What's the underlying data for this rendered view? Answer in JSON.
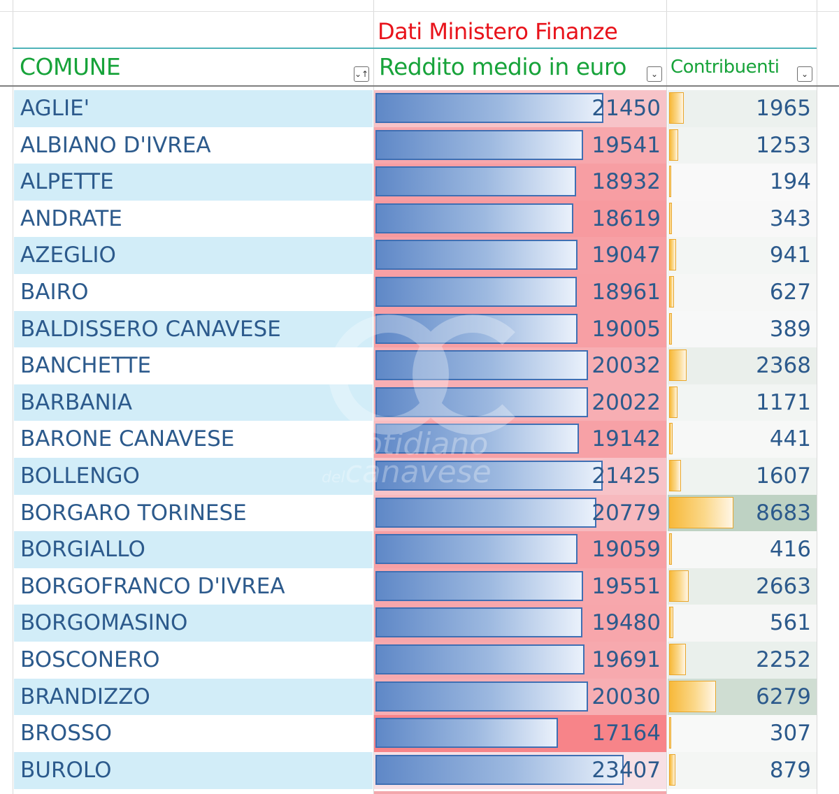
{
  "header": {
    "super_title": "Dati Ministero Finanze",
    "col_comune": "COMUNE",
    "col_reddito": "Reddito medio in euro",
    "col_contribuenti": "Contribuenti",
    "sort_icon_glyph": "⌄↑",
    "filter_icon_glyph": "⌄"
  },
  "colors": {
    "header_green": "#17a33a",
    "super_red": "#e8131b",
    "row_blue": "#d2edf8",
    "text_blue": "#2c5a8c"
  },
  "rows": [
    {
      "comune": "AGLIE'",
      "reddito": "21450",
      "contribuenti": "1965"
    },
    {
      "comune": "ALBIANO D'IVREA",
      "reddito": "19541",
      "contribuenti": "1253"
    },
    {
      "comune": "ALPETTE",
      "reddito": "18932",
      "contribuenti": "194"
    },
    {
      "comune": "ANDRATE",
      "reddito": "18619",
      "contribuenti": "343"
    },
    {
      "comune": "AZEGLIO",
      "reddito": "19047",
      "contribuenti": "941"
    },
    {
      "comune": "BAIRO",
      "reddito": "18961",
      "contribuenti": "627"
    },
    {
      "comune": "BALDISSERO CANAVESE",
      "reddito": "19005",
      "contribuenti": "389"
    },
    {
      "comune": "BANCHETTE",
      "reddito": "20032",
      "contribuenti": "2368"
    },
    {
      "comune": "BARBANIA",
      "reddito": "20022",
      "contribuenti": "1171"
    },
    {
      "comune": "BARONE CANAVESE",
      "reddito": "19142",
      "contribuenti": "441"
    },
    {
      "comune": "BOLLENGO",
      "reddito": "21425",
      "contribuenti": "1607"
    },
    {
      "comune": "BORGARO TORINESE",
      "reddito": "20779",
      "contribuenti": "8683"
    },
    {
      "comune": "BORGIALLO",
      "reddito": "19059",
      "contribuenti": "416"
    },
    {
      "comune": "BORGOFRANCO D'IVREA",
      "reddito": "19551",
      "contribuenti": "2663"
    },
    {
      "comune": "BORGOMASINO",
      "reddito": "19480",
      "contribuenti": "561"
    },
    {
      "comune": "BOSCONERO",
      "reddito": "19691",
      "contribuenti": "2252"
    },
    {
      "comune": "BRANDIZZO",
      "reddito": "20030",
      "contribuenti": "6279"
    },
    {
      "comune": "BROSSO",
      "reddito": "17164",
      "contribuenti": "307"
    },
    {
      "comune": "BUROLO",
      "reddito": "23407",
      "contribuenti": "879"
    }
  ],
  "watermark": {
    "line1": "otidiano",
    "line2_prefix": "del",
    "line2": "canavese"
  }
}
